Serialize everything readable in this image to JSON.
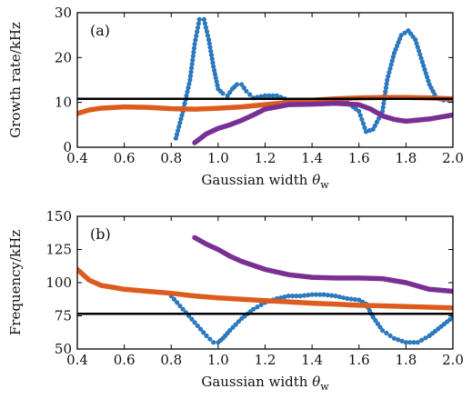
{
  "chart_data": [
    {
      "type": "scatter",
      "panel_label": "(a)",
      "xlabel": "Gaussian width",
      "xlabel_symbol": "θ",
      "xlabel_sub": "w",
      "ylabel": "Growth rate/kHz",
      "xlim": [
        0.4,
        2.0
      ],
      "ylim": [
        0,
        30
      ],
      "xticks": [
        "0.4",
        "0.6",
        "0.8",
        "1.0",
        "1.2",
        "1.4",
        "1.6",
        "1.8",
        "2.0"
      ],
      "yticks": [
        "0",
        "10",
        "20",
        "30"
      ],
      "hline": 10.8,
      "colors": {
        "blue": "#2a78be",
        "orange": "#dd5b1d",
        "purple": "#7a2f94",
        "line": "#000000"
      },
      "series": [
        {
          "color": "blue",
          "style": "dots",
          "x": [
            0.82,
            0.85,
            0.88,
            0.9,
            0.92,
            0.94,
            0.96,
            0.98,
            1.0,
            1.02,
            1.04,
            1.06,
            1.08,
            1.1,
            1.12,
            1.15,
            1.2,
            1.25,
            1.3,
            1.4,
            1.5,
            1.55,
            1.6,
            1.63,
            1.66,
            1.7,
            1.72,
            1.75,
            1.78,
            1.81,
            1.84,
            1.87,
            1.9,
            1.93,
            1.96,
            2.0
          ],
          "y": [
            2,
            8,
            15,
            23,
            28.5,
            28.5,
            24,
            18,
            13,
            12,
            11.5,
            13,
            14,
            14,
            12.5,
            11,
            11.5,
            11.5,
            10.5,
            10,
            10,
            10,
            8,
            3.5,
            4,
            8,
            15,
            21,
            25,
            26,
            24,
            19,
            14,
            11,
            10.5,
            10.5
          ]
        },
        {
          "color": "orange",
          "style": "thick",
          "x": [
            0.4,
            0.45,
            0.5,
            0.6,
            0.7,
            0.8,
            0.9,
            1.0,
            1.1,
            1.2,
            1.3,
            1.4,
            1.5,
            1.6,
            1.7,
            1.8,
            1.9,
            2.0
          ],
          "y": [
            7.5,
            8.3,
            8.7,
            9.0,
            8.9,
            8.6,
            8.5,
            8.7,
            9.0,
            9.5,
            10.0,
            10.5,
            10.8,
            11.0,
            11.1,
            11.1,
            11.0,
            10.8
          ]
        },
        {
          "color": "purple",
          "style": "thick",
          "x": [
            0.9,
            0.95,
            1.0,
            1.05,
            1.1,
            1.15,
            1.2,
            1.3,
            1.4,
            1.5,
            1.6,
            1.65,
            1.7,
            1.75,
            1.8,
            1.9,
            2.0
          ],
          "y": [
            1.0,
            3.0,
            4.2,
            5.0,
            6.0,
            7.2,
            8.5,
            9.5,
            9.6,
            9.8,
            9.5,
            8.5,
            7.0,
            6.2,
            5.8,
            6.3,
            7.2
          ]
        }
      ]
    },
    {
      "type": "scatter",
      "panel_label": "(b)",
      "xlabel": "Gaussian width",
      "xlabel_symbol": "θ",
      "xlabel_sub": "w",
      "ylabel": "Frequency/kHz",
      "xlim": [
        0.4,
        2.0
      ],
      "ylim": [
        50,
        150
      ],
      "xticks": [
        "0.4",
        "0.6",
        "0.8",
        "1.0",
        "1.2",
        "1.4",
        "1.6",
        "1.8",
        "2.0"
      ],
      "yticks": [
        "50",
        "75",
        "100",
        "125",
        "150"
      ],
      "hline": 76.5,
      "colors": {
        "blue": "#2a78be",
        "orange": "#dd5b1d",
        "purple": "#7a2f94",
        "line": "#000000"
      },
      "series": [
        {
          "color": "blue",
          "style": "dots",
          "x": [
            0.8,
            0.85,
            0.9,
            0.95,
            0.98,
            1.0,
            1.02,
            1.05,
            1.1,
            1.15,
            1.2,
            1.25,
            1.3,
            1.35,
            1.4,
            1.45,
            1.5,
            1.55,
            1.6,
            1.63,
            1.66,
            1.7,
            1.75,
            1.8,
            1.85,
            1.9,
            1.95,
            2.0
          ],
          "y": [
            90,
            80,
            70,
            60,
            55,
            55,
            58,
            64,
            73,
            80,
            85,
            88,
            90,
            90,
            91,
            91,
            90,
            88,
            87,
            84,
            74,
            64,
            58,
            55,
            55,
            60,
            67,
            74
          ]
        },
        {
          "color": "orange",
          "style": "thick",
          "x": [
            0.4,
            0.45,
            0.5,
            0.6,
            0.7,
            0.8,
            0.9,
            1.0,
            1.1,
            1.2,
            1.3,
            1.4,
            1.5,
            1.6,
            1.7,
            1.8,
            1.9,
            2.0
          ],
          "y": [
            110,
            102,
            98,
            95,
            93.5,
            92,
            90,
            88.5,
            87.5,
            86.5,
            85.5,
            84.5,
            83.8,
            83,
            82.5,
            82,
            81.5,
            81
          ]
        },
        {
          "color": "purple",
          "style": "thick",
          "x": [
            0.9,
            0.95,
            1.0,
            1.05,
            1.1,
            1.15,
            1.2,
            1.3,
            1.4,
            1.5,
            1.6,
            1.7,
            1.8,
            1.9,
            2.0
          ],
          "y": [
            134,
            129,
            125,
            120,
            116,
            113,
            110,
            106,
            104,
            103.5,
            103.5,
            103,
            100,
            95,
            93.5
          ]
        }
      ]
    }
  ]
}
